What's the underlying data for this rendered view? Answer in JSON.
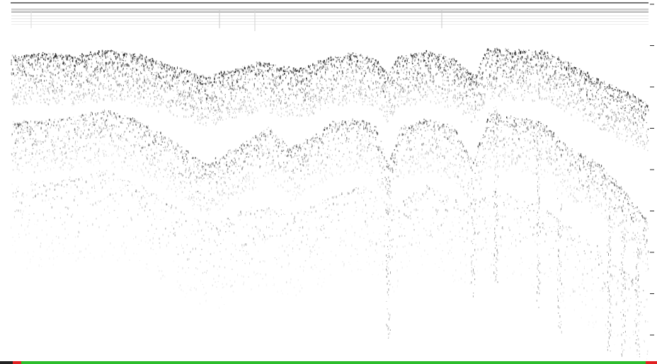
{
  "viewer": {
    "image_type": "sub-bottom sonar echogram",
    "colors": {
      "background": "#ffffff",
      "echo_dark": "#111111",
      "header_band": "#9a9a9a",
      "status_ok": "#2bbd2b",
      "status_marker": "#e02020",
      "axis": "#222222"
    },
    "scale": {
      "tick_count": 9
    },
    "status_bar": {
      "segments": [
        "marker",
        "ok",
        "marker"
      ]
    }
  }
}
